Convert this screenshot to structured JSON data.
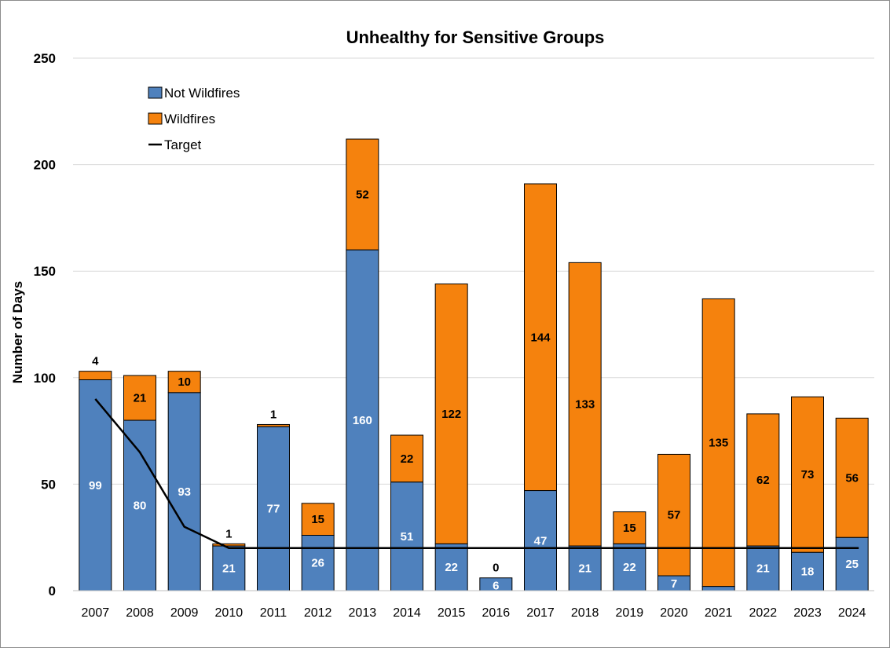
{
  "chart_data": {
    "type": "bar",
    "stacked": true,
    "title": "Unhealthy for Sensitive Groups",
    "ylabel": "Number of Days",
    "xlabel": "",
    "ylim": [
      0,
      250
    ],
    "yticks": [
      0,
      50,
      100,
      150,
      200,
      250
    ],
    "grid": true,
    "legend_position": "top-left",
    "categories": [
      "2007",
      "2008",
      "2009",
      "2010",
      "2011",
      "2012",
      "2013",
      "2014",
      "2015",
      "2016",
      "2017",
      "2018",
      "2019",
      "2020",
      "2021",
      "2022",
      "2023",
      "2024"
    ],
    "series": [
      {
        "name": "Not Wildfires",
        "type": "bar",
        "color": "#4f81bd",
        "label_color": "#ffffff",
        "values": [
          99,
          80,
          93,
          21,
          77,
          26,
          160,
          51,
          22,
          6,
          47,
          21,
          22,
          7,
          2,
          21,
          18,
          25
        ]
      },
      {
        "name": "Wildfires",
        "type": "bar",
        "color": "#f5820d",
        "label_color": "#000000",
        "values": [
          4,
          21,
          10,
          1,
          1,
          15,
          52,
          22,
          122,
          0,
          144,
          133,
          15,
          57,
          135,
          62,
          73,
          56
        ]
      },
      {
        "name": "Target",
        "type": "line",
        "color": "#000000",
        "values": [
          90,
          65,
          30,
          20,
          20,
          20,
          20,
          20,
          20,
          20,
          20,
          20,
          20,
          20,
          20,
          20,
          20,
          20
        ]
      }
    ]
  }
}
